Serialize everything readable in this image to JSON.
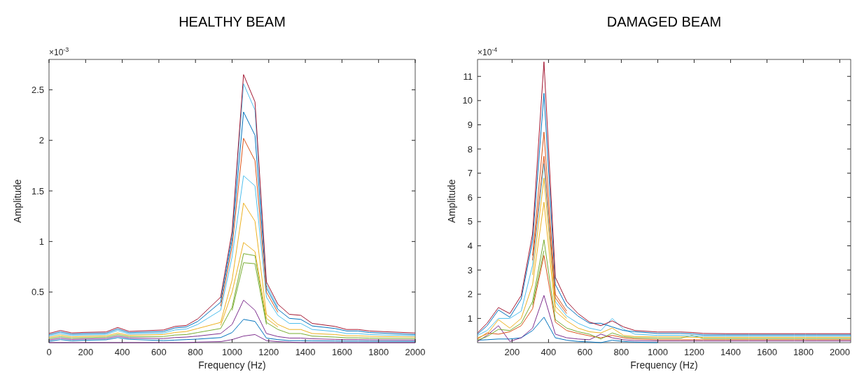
{
  "chart_data": [
    {
      "type": "line",
      "title": "HEALTHY BEAM",
      "xlabel": "Frequency (Hz)",
      "ylabel": "Amplitude",
      "annotations": [
        "×10$^{-3}$"
      ],
      "xlim": [
        0,
        2000
      ],
      "xticks": [
        0,
        200,
        400,
        600,
        800,
        1000,
        1200,
        1400,
        1600,
        1800,
        2000
      ],
      "ylim": [
        0,
        2.8
      ],
      "yticks": [
        0.5,
        1,
        1.5,
        2,
        2.5
      ],
      "grid": false,
      "line_style": "solid",
      "x": [
        0,
        62.5,
        125,
        187.5,
        312.5,
        375,
        437.5,
        625,
        687.5,
        750,
        812.5,
        937.5,
        1000,
        1062.5,
        1125,
        1187.5,
        1250,
        1312.5,
        1375,
        1437.5,
        1562.5,
        1625,
        1687.5,
        1750,
        2000
      ],
      "series": [
        {
          "color": "#7e2f8e",
          "values": [
            0,
            0,
            0,
            0,
            0,
            0,
            0,
            0,
            0,
            0,
            0.005,
            0.01,
            0.03,
            0.065,
            0.08,
            0.02,
            0.01,
            0.005,
            0,
            0,
            0,
            0,
            0,
            0,
            0
          ]
        },
        {
          "color": "#0072bd",
          "values": [
            0.013,
            0.03,
            0.018,
            0.023,
            0.028,
            0.05,
            0.033,
            0.02,
            0.025,
            0.03,
            0.035,
            0.05,
            0.1,
            0.23,
            0.21,
            0.045,
            0.03,
            0.02,
            0.02,
            0.018,
            0.016,
            0.015,
            0.015,
            0.014,
            0.012
          ]
        },
        {
          "color": "#7e2f8e",
          "values": [
            0.026,
            0.045,
            0.031,
            0.036,
            0.041,
            0.065,
            0.046,
            0.04,
            0.05,
            0.055,
            0.065,
            0.09,
            0.18,
            0.42,
            0.32,
            0.09,
            0.06,
            0.045,
            0.045,
            0.038,
            0.032,
            0.03,
            0.03,
            0.028,
            0.025
          ]
        },
        {
          "color": "#77ac30",
          "values": [
            0.039,
            0.06,
            0.044,
            0.049,
            0.054,
            0.08,
            0.059,
            0.06,
            0.075,
            0.08,
            0.1,
            0.14,
            0.35,
            0.88,
            0.86,
            0.2,
            0.13,
            0.09,
            0.09,
            0.065,
            0.055,
            0.048,
            0.048,
            0.044,
            0.04
          ]
        },
        {
          "color": "#edb120",
          "values": [
            0.052,
            0.075,
            0.057,
            0.062,
            0.067,
            0.095,
            0.072,
            0.08,
            0.1,
            0.11,
            0.14,
            0.2,
            0.62,
            1.38,
            1.2,
            0.28,
            0.18,
            0.13,
            0.13,
            0.09,
            0.08,
            0.068,
            0.068,
            0.062,
            0.055
          ]
        },
        {
          "color": "#4dbeee",
          "values": [
            0.065,
            0.09,
            0.07,
            0.075,
            0.08,
            0.12,
            0.085,
            0.095,
            0.125,
            0.135,
            0.18,
            0.32,
            0.85,
            1.65,
            1.55,
            0.45,
            0.27,
            0.19,
            0.19,
            0.13,
            0.11,
            0.09,
            0.09,
            0.08,
            0.068
          ]
        },
        {
          "color": "#0072bd",
          "values": [
            0.078,
            0.105,
            0.083,
            0.088,
            0.093,
            0.135,
            0.098,
            0.11,
            0.145,
            0.155,
            0.21,
            0.4,
            1.02,
            2.28,
            2.05,
            0.54,
            0.33,
            0.24,
            0.23,
            0.165,
            0.14,
            0.115,
            0.115,
            0.1,
            0.08
          ]
        },
        {
          "color": "#4dbeee",
          "values": [
            null,
            null,
            null,
            null,
            null,
            null,
            null,
            null,
            null,
            null,
            null,
            0.43,
            1.06,
            2.56,
            2.3,
            0.57,
            0.35,
            null,
            null,
            null,
            null,
            null,
            null,
            null,
            null
          ]
        },
        {
          "color": "#d95319",
          "values": [
            null,
            null,
            null,
            null,
            null,
            null,
            null,
            null,
            null,
            null,
            null,
            0.36,
            0.95,
            2.02,
            1.8,
            0.5,
            0.3,
            null,
            null,
            null,
            null,
            null,
            null,
            null,
            null
          ]
        },
        {
          "color": "#edb120",
          "values": [
            null,
            null,
            null,
            null,
            null,
            null,
            null,
            null,
            null,
            null,
            null,
            0.17,
            0.5,
            0.99,
            0.9,
            0.24,
            0.155,
            null,
            null,
            null,
            null,
            null,
            null,
            null,
            null
          ]
        },
        {
          "color": "#77ac30",
          "values": [
            null,
            null,
            null,
            null,
            null,
            null,
            null,
            null,
            null,
            null,
            null,
            null,
            0.32,
            0.79,
            0.78,
            0.18,
            null,
            null,
            null,
            null,
            null,
            null,
            null,
            null,
            null
          ]
        },
        {
          "color": "#a2142f",
          "values": [
            0.091,
            0.12,
            0.096,
            0.101,
            0.106,
            0.15,
            0.111,
            0.125,
            0.16,
            0.17,
            0.235,
            0.45,
            1.1,
            2.65,
            2.38,
            0.6,
            0.38,
            0.28,
            0.27,
            0.19,
            0.16,
            0.13,
            0.13,
            0.115,
            0.095
          ]
        }
      ]
    },
    {
      "type": "line",
      "title": "DAMAGED BEAM",
      "xlabel": "Frequency (Hz)",
      "ylabel": "Amplitude",
      "annotations": [
        "×10$^{-4}$"
      ],
      "xlim": [
        10,
        2060
      ],
      "xticks": [
        200,
        400,
        600,
        800,
        1000,
        1200,
        1400,
        1600,
        1800,
        2000
      ],
      "ylim": [
        0,
        11.7
      ],
      "yticks": [
        1,
        2,
        3,
        4,
        5,
        6,
        7,
        8,
        9,
        10,
        11
      ],
      "grid": false,
      "line_style": "solid",
      "x": [
        10,
        62.5,
        125,
        187.5,
        250,
        312.5,
        375,
        437.5,
        500,
        562.5,
        625,
        687.5,
        750,
        812.5,
        875,
        1000,
        1125,
        1187.5,
        1250,
        1375,
        1500,
        1750,
        1812.5,
        1875,
        2060
      ],
      "series": [
        {
          "color": "#0072bd",
          "values": [
            0.1,
            0.12,
            0.15,
            0.15,
            0.2,
            0.5,
            1.05,
            0.2,
            0.1,
            0.05,
            0.03,
            0,
            0.1,
            0.05,
            0.02,
            0,
            null,
            null,
            null,
            null,
            null,
            null,
            null,
            null,
            null
          ]
        },
        {
          "color": "#7e2f8e",
          "values": [
            0.05,
            0.3,
            0.7,
            0.05,
            0.2,
            0.6,
            1.95,
            0.35,
            0.2,
            0.15,
            0.12,
            0.35,
            0.2,
            0.12,
            0.08,
            0.07,
            0.07,
            0.07,
            0.07,
            0.07,
            0.07,
            0.07,
            0.07,
            0.07,
            0.07
          ]
        },
        {
          "color": "#d95319",
          "values": [
            0.15,
            0.4,
            0.35,
            0.45,
            0.7,
            1.4,
            3.6,
            0.85,
            0.5,
            0.38,
            0.28,
            0.2,
            0.3,
            0.2,
            0.15,
            0.12,
            0.12,
            0.12,
            0.12,
            0.12,
            0.12,
            0.12,
            0.12,
            0.12,
            0.12
          ]
        },
        {
          "color": "#77ac30",
          "values": [
            0.1,
            0.25,
            0.55,
            0.5,
            0.8,
            1.7,
            4.25,
            0.95,
            0.6,
            0.45,
            0.35,
            0.15,
            0.4,
            0.25,
            0.2,
            0.18,
            0.18,
            0.3,
            0.17,
            0.17,
            0.17,
            0.17,
            0.17,
            0.17,
            0.17
          ]
        },
        {
          "color": "#edb120",
          "values": [
            0.2,
            0.35,
            0.95,
            0.6,
            1.0,
            2.4,
            5.8,
            1.3,
            0.9,
            0.6,
            0.45,
            0.4,
            0.6,
            0.3,
            0.25,
            0.24,
            0.24,
            0.22,
            0.22,
            0.22,
            0.22,
            0.22,
            0.22,
            0.22,
            0.22
          ]
        },
        {
          "color": "#4dbeee",
          "values": [
            0.3,
            0.5,
            1.0,
            1.0,
            1.3,
            3.2,
            7.4,
            1.7,
            1.1,
            0.8,
            0.6,
            0.5,
            1.0,
            0.55,
            0.35,
            0.3,
            0.3,
            0.27,
            0.27,
            0.27,
            0.27,
            0.27,
            0.27,
            0.27,
            0.27
          ]
        },
        {
          "color": "#0072bd",
          "values": [
            0.35,
            0.7,
            1.35,
            1.05,
            1.8,
            4.2,
            10.3,
            2.4,
            1.5,
            1.1,
            0.8,
            0.8,
            0.65,
            0.5,
            0.45,
            0.38,
            0.38,
            0.36,
            0.32,
            0.32,
            0.32,
            0.32,
            0.32,
            0.32,
            0.32
          ]
        },
        {
          "color": "#d95319",
          "values": [
            null,
            null,
            null,
            null,
            null,
            3.6,
            8.7,
            2.0,
            1.3,
            null,
            null,
            null,
            null,
            null,
            null,
            null,
            null,
            null,
            null,
            null,
            null,
            null,
            null,
            null,
            null
          ]
        },
        {
          "color": "#d95319",
          "values": [
            null,
            null,
            null,
            null,
            null,
            3.4,
            7.7,
            1.85,
            1.2,
            null,
            null,
            null,
            null,
            null,
            null,
            null,
            null,
            null,
            null,
            null,
            null,
            null,
            null,
            null,
            null
          ]
        },
        {
          "color": "#edb120",
          "values": [
            null,
            null,
            null,
            null,
            null,
            2.8,
            6.8,
            1.5,
            1.0,
            null,
            null,
            null,
            null,
            null,
            null,
            null,
            null,
            null,
            null,
            null,
            null,
            null,
            null,
            null,
            null
          ]
        },
        {
          "color": "#77ac30",
          "values": [
            null,
            null,
            null,
            null,
            null,
            1.55,
            3.8,
            null,
            null,
            null,
            null,
            null,
            null,
            null,
            null,
            null,
            null,
            null,
            null,
            null,
            null,
            null,
            null,
            null,
            null
          ]
        },
        {
          "color": "#a2142f",
          "values": [
            0.4,
            0.8,
            1.45,
            1.2,
            1.95,
            4.5,
            11.6,
            2.7,
            1.7,
            1.2,
            0.85,
            0.7,
            0.9,
            0.65,
            0.5,
            0.44,
            0.44,
            0.42,
            0.38,
            0.37,
            0.37,
            0.37,
            0.37,
            0.37,
            0.37
          ]
        }
      ]
    }
  ]
}
